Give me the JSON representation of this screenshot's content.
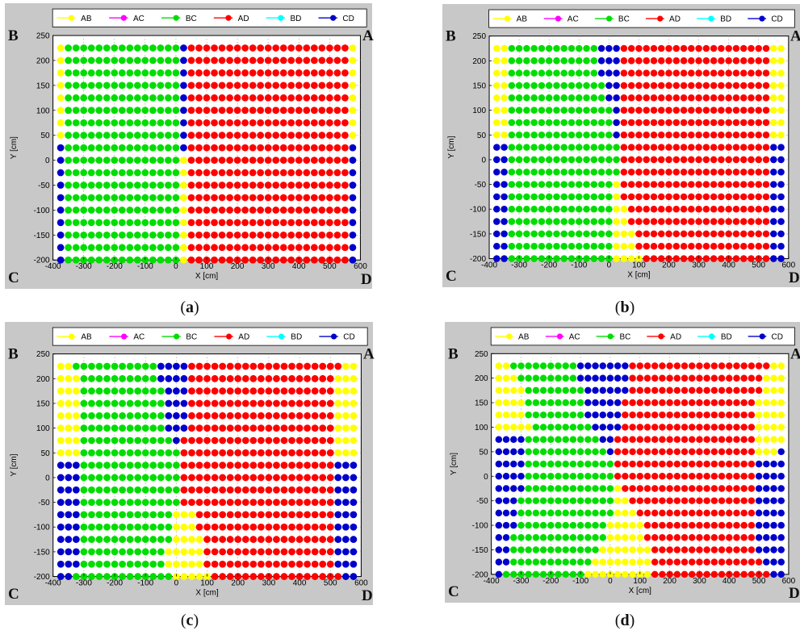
{
  "figure": {
    "captions": [
      "(a)",
      "(b)",
      "(c)",
      "(d)"
    ],
    "caption_letters": [
      "a",
      "b",
      "c",
      "d"
    ]
  },
  "legend": {
    "entries": [
      {
        "label": "AB",
        "color": "#ffff00"
      },
      {
        "label": "AC",
        "color": "#ff00ff"
      },
      {
        "label": "BC",
        "color": "#00dd00"
      },
      {
        "label": "AD",
        "color": "#ff0000"
      },
      {
        "label": "BD",
        "color": "#00ffff"
      },
      {
        "label": "CD",
        "color": "#0000cc"
      }
    ]
  },
  "corners": {
    "top_left": "B",
    "top_right": "A",
    "bottom_left": "C",
    "bottom_right": "D"
  },
  "chart_data": [
    {
      "type": "scatter",
      "panel": "a",
      "xlabel": "X [cm]",
      "ylabel": "Y [cm]",
      "xlim": [
        -400,
        600
      ],
      "ylim": [
        -200,
        250
      ],
      "xticks": [
        -400,
        -300,
        -200,
        -100,
        0,
        100,
        200,
        300,
        400,
        500,
        600
      ],
      "yticks": [
        -200,
        -150,
        -100,
        -50,
        0,
        50,
        100,
        150,
        200,
        250
      ],
      "grid": true,
      "legend_position": "top",
      "x_points": {
        "start": -375,
        "step": 25,
        "count": 39
      },
      "y_points": {
        "start": 225,
        "step": -25,
        "count": 18
      },
      "grid_rows": [
        "ABBBBBBBBBBBBBBBCDDDDDDDDDDDDDDDDDDDDDA",
        "ABBBBBBBBBBBBBBBCDDDDDDDDDDDDDDDDDDDDDA",
        "ABBBBBBBBBBBBBBBCDDDDDDDDDDDDDDDDDDDDDA",
        "ABBBBBBBBBBBBBBBCDDDDDDDDDDDDDDDDDDDDDA",
        "ABBBBBBBBBBBBBBBCDDDDDDDDDDDDDDDDDDDDDA",
        "ABBBBBBBBBBBBBBBCDDDDDDDDDDDDDDDDDDDDDA",
        "ABBBBBBBBBBBBBBBCDDDDDDDDDDDDDDDDDDDDDA",
        "ABBBBBBBBBBBBBBBCDDDDDDDDDDDDDDDDDDDDDA",
        "CBBBBBBBBBBBBBBBCDDDDDDDDDDDDDDDDDDDDDC",
        "CBBBBBBBBBBBBBBBADDDDDDDDDDDDDDDDDDDDDC",
        "CBBBBBBBBBBBBBBBADDDDDDDDDDDDDDDDDDDDDC",
        "CBBBBBBBBBBBBBBBADDDDDDDDDDDDDDDDDDDDDC",
        "CBBBBBBBBBBBBBBBADDDDDDDDDDDDDDDDDDDDDC",
        "CBBBBBBBBBBBBBBBADDDDDDDDDDDDDDDDDDDDDC",
        "CBBBBBBBBBBBBBBBADDDDDDDDDDDDDDDDDDDDDC",
        "CBBBBBBBBBBBBBBBADDDDDDDDDDDDDDDDDDDDDC",
        "CBBBBBBBBBBBBBBBADDDDDDDDDDDDDDDDDDDDDC",
        "CBBBBBBBBBBBBBBBADDDDDDDDDDDDDDDDDDDDDC"
      ],
      "grid_key": {
        "A": "AB",
        "B": "BC",
        "C": "CD",
        "D": "AD"
      }
    },
    {
      "type": "scatter",
      "panel": "b",
      "xlabel": "X [cm]",
      "ylabel": "Y [cm]",
      "xlim": [
        -400,
        600
      ],
      "ylim": [
        -200,
        250
      ],
      "xticks": [
        -400,
        -300,
        -200,
        -100,
        0,
        100,
        200,
        300,
        400,
        500,
        600
      ],
      "yticks": [
        -200,
        -150,
        -100,
        -50,
        0,
        50,
        100,
        150,
        200,
        250
      ],
      "grid": true,
      "legend_position": "top",
      "x_points": {
        "start": -375,
        "step": 25,
        "count": 39
      },
      "y_points": {
        "start": 225,
        "step": -25,
        "count": 18
      },
      "grid_rows": [
        "AABBBBBBBBBBBBCCCDDDDDDDDDDDDDDDDDDDDAA",
        "AABBBBBBBBBBBBCCCDDDDDDDDDDDDDDDDDDDDAA",
        "AABBBBBBBBBBBBCCCDDDDDDDDDDDDDDDDDDDDAA",
        "AABBBBBBBBBBBBBCCDDDDDDDDDDDDDDDDDDDDAA",
        "AABBBBBBBBBBBBBCCDDDDDDDDDDDDDDDDDDDDAA",
        "AABBBBBBBBBBBBBBCDDDDDDDDDDDDDDDDDDDDAA",
        "AABBBBBBBBBBBBBBCDDDDDDDDDDDDDDDDDDDDAA",
        "AABBBBBBBBBBBBBBCDDDDDDDDDDDDDDDDDDDDAA",
        "CCBBBBBBBBBBBBBBBDDDDDDDDDDDDDDDDDDDDCC",
        "CCBBBBBBBBBBBBBBBDDDDDDDDDDDDDDDDDDDDCC",
        "CCBBBBBBBBBBBBBBBDDDDDDDDDDDDDDDDDDDDCC",
        "CCBBBBBBBBBBBBBBADDDDDDDDDDDDDDDDDDDDCC",
        "CCBBBBBBBBBBBBBBADDDDDDDDDDDDDDDDDDDDCC",
        "CCBBBBBBBBBBBBBBAADDDDDDDDDDDDDDDDDDDCC",
        "CCBBBBBBBBBBBBBBAADDDDDDDDDDDDDDDDDDDCC",
        "CCBBBBBBBBBBBBBBAAADDDDDDDDDDDDDDDDDDCC",
        "CCBBBBBBBBBBBBBBAAADDDDDDDDDDDDDDDDDDCC",
        "CCBBBBBBBBBBBBBBAAAADDDDDDDDDDDDDDDDDCC"
      ],
      "grid_key": {
        "A": "AB",
        "B": "BC",
        "C": "CD",
        "D": "AD"
      }
    },
    {
      "type": "scatter",
      "panel": "c",
      "xlabel": "X [cm]",
      "ylabel": "Y [cm]",
      "xlim": [
        -400,
        600
      ],
      "ylim": [
        -200,
        250
      ],
      "xticks": [
        -400,
        -300,
        -200,
        -100,
        0,
        100,
        200,
        300,
        400,
        500,
        600
      ],
      "yticks": [
        -200,
        -150,
        -100,
        -50,
        0,
        50,
        100,
        150,
        200,
        250
      ],
      "grid": true,
      "legend_position": "top",
      "x_points": {
        "start": -375,
        "step": 25,
        "count": 39
      },
      "y_points": {
        "start": 225,
        "step": -25,
        "count": 18
      },
      "grid_rows": [
        "AABBBBBBBBBBBCCCCDDDDDDDDDDDDDDDDDDDDAA",
        "AAABBBBBBBBBBCCCCDDDDDDDDDDDDDDDDDDDAAA",
        "AAABBBBBBBBBBBCCCDDDDDDDDDDDDDDDDDDDAAA",
        "AAABBBBBBBBBBBCCCDDDDDDDDDDDDDDDDDDDAAA",
        "AAABBBBBBBBBBBCCCDDDDDDDDDDDDDDDDDDDAAA",
        "AAABBBBBBBBBBBCCCDDDDDDDDDDDDDDDDDDDAAA",
        "AAABBBBBBBBBBBBCDDDDDDDDDDDDDDDDDDDDAAA",
        "AAABBBBBBBBBBBBBDDDDDDDDDDDDDDDDDDDDAAA",
        "CCCBBBBBBBBBBBBBDDDDDDDDDDDDDDDDDDDDCCC",
        "CCCBBBBBBBBBBBBBDDDDDDDDDDDDDDDDDDDDCCC",
        "CCCBBBBBBBBBBBBBDDDDDDDDDDDDDDDDDDDDCCC",
        "CCCBBBBBBBBBBBBBDDDDDDDDDDDDDDDDDDDDCCC",
        "CCCBBBBBBBBBBBBAAADDDDDDDDDDDDDDDDDDCCC",
        "CCCBBBBBBBBBBBBAAADDDDDDDDDDDDDDDDDDCCC",
        "CCCBBBBBBBBBBBBAAAADDDDDDDDDDDDDDDDDCCC",
        "CCCBBBBBBBBBBBAAAAADDDDDDDDDDDDDDDDDCCC",
        "CCCBBBBBBBBBBBAAAAADDDDDDDDDDDDDDDDDCCC",
        "CCBBBBBBBBBBBBBAAAAADDDDDDDDDDDDDDDDDCC"
      ],
      "grid_key": {
        "A": "AB",
        "B": "BC",
        "C": "CD",
        "D": "AD"
      }
    },
    {
      "type": "scatter",
      "panel": "d",
      "xlabel": "X [cm]",
      "ylabel": "Y [cm]",
      "xlim": [
        -400,
        600
      ],
      "ylim": [
        -200,
        250
      ],
      "xticks": [
        -400,
        -300,
        -200,
        -100,
        0,
        100,
        200,
        300,
        400,
        500,
        600
      ],
      "yticks": [
        -200,
        -150,
        -100,
        -50,
        0,
        50,
        100,
        150,
        200,
        250
      ],
      "grid": true,
      "legend_position": "top",
      "x_points": {
        "start": -375,
        "step": 25,
        "count": 39
      },
      "y_points": {
        "start": 225,
        "step": -25,
        "count": 18
      },
      "grid_rows": [
        "AABBBBBBBBBCCCCCCCDDDDDDDDDDDDDDDDDDDAA",
        "AAABBBBBBBBCCCCCCCDDDDDDDDDDDDDDDDDDAAA",
        "AAAABBBBBBBBCCCCCCDDDDDDDDDDDDDDDDDDAAA",
        "AAAABBBBBBBBCCCCCDDDDDDDDDDDDDDDDDDAAAA",
        "AAAABBBBBBBBCCCCCDDDDDDDDDDDDDDDDDDAAAA",
        "AAAAABBBBBBBBCCCCDDDDDDDDDDDDDDDDDDAAAA",
        "CCCCBBBBBBBBBBCCDDDDDDDDDDDDDDDDDDDAAAA",
        "CCCCBBBBBBBBBBBCDDDDDDDDDDDDDDDDDDDAAAC",
        "CCCCBBBBBBBBBBBBDDDDDDDDDDDDDDDDDDDCCCC",
        "CCCCBBBBBBBBBBBBDDDDDDDDDDDDDDDDDDDCCCC",
        "CCCCBBBBBBBBBBBBADDDDDDDDDDDDDDDDDDCCCC",
        "CCCBBBBBBBBBBBBBAADDDDDDDDDDDDDDDDDCCCC",
        "CCCBBBBBBBBBBBBBAAADDDDDDDDDDDDDDDDCCCC",
        "CCCBBBBBBBBBBBBAAAAADDDDDDDDDDDDDDDCCCC",
        "CCBBBBBBBBBBBBBAAAAADDDDDDDDDDDDDDDCCCC",
        "CCBBBBBBBBBBBBAAAAAAADDDDDDDDDDDDDDCCCC",
        "CCBBBBBBBBBBBAAAAAAAADDDDDDDDDDDDDDDCCC",
        "CBBBBBBBBBBBAAAAAAAAADDDDDDDDDDDDDDDDCC"
      ],
      "grid_key": {
        "A": "AB",
        "B": "BC",
        "C": "CD",
        "D": "AD"
      }
    }
  ]
}
